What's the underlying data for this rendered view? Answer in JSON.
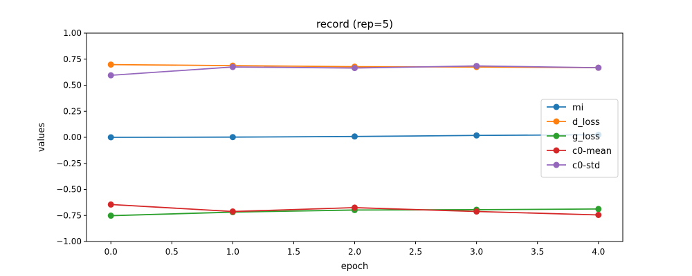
{
  "chart_data": {
    "type": "line",
    "title": "record (rep=5)",
    "xlabel": "epoch",
    "ylabel": "values",
    "xlim": [
      -0.2,
      4.2
    ],
    "ylim": [
      -1.0,
      1.0
    ],
    "xticks": [
      "0.0",
      "0.5",
      "1.0",
      "1.5",
      "2.0",
      "2.5",
      "3.0",
      "3.5",
      "4.0"
    ],
    "yticks": [
      "−1.00",
      "−0.75",
      "−0.50",
      "−0.25",
      "0.00",
      "0.25",
      "0.50",
      "0.75",
      "1.00"
    ],
    "grid": false,
    "legend_position": "center-right",
    "x": [
      0,
      1,
      2,
      3,
      4
    ],
    "series": [
      {
        "name": "mi",
        "color": "#1f77b4",
        "values": [
          0.0,
          0.002,
          0.008,
          0.018,
          0.025
        ]
      },
      {
        "name": "d_loss",
        "color": "#ff7f0e",
        "values": [
          0.698,
          0.688,
          0.678,
          0.675,
          0.668
        ]
      },
      {
        "name": "g_loss",
        "color": "#2ca02c",
        "values": [
          -0.752,
          -0.718,
          -0.698,
          -0.695,
          -0.688
        ]
      },
      {
        "name": "c0-mean",
        "color": "#d62728",
        "values": [
          -0.645,
          -0.712,
          -0.675,
          -0.712,
          -0.745
        ]
      },
      {
        "name": "c0-std",
        "color": "#9467bd",
        "values": [
          0.595,
          0.675,
          0.665,
          0.685,
          0.668
        ]
      }
    ]
  }
}
